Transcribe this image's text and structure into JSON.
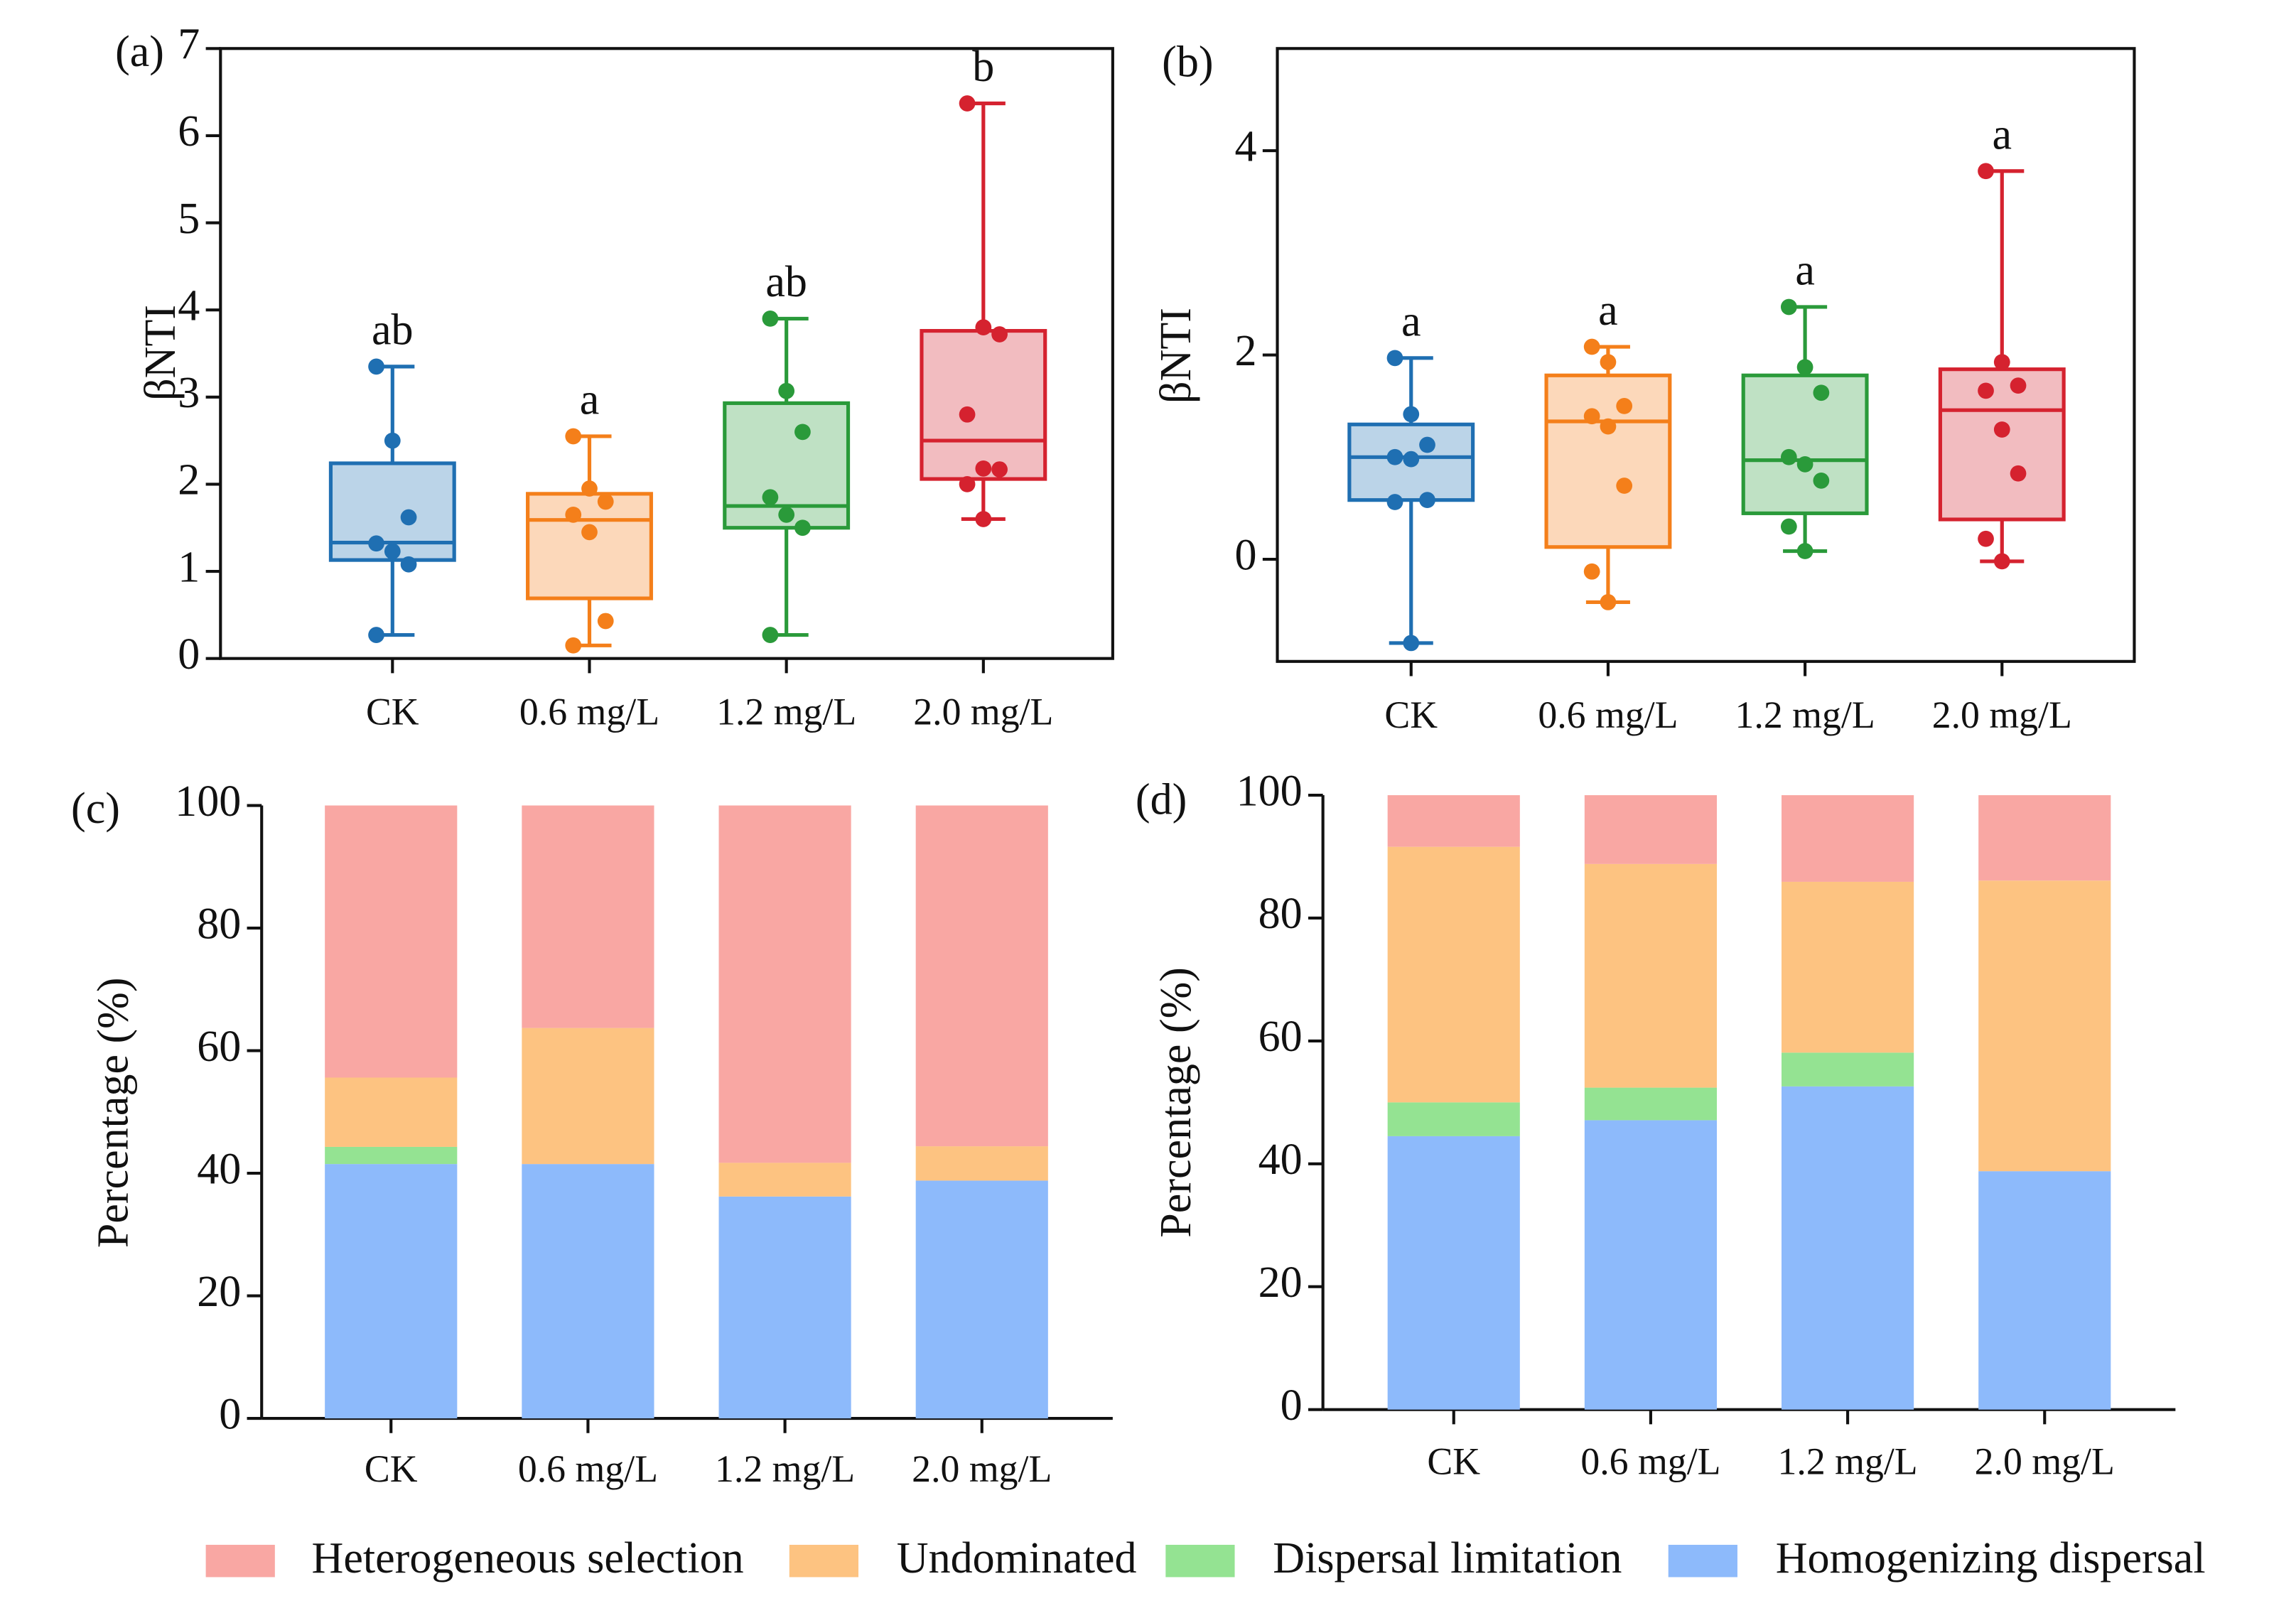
{
  "chart_data": [
    {
      "type": "box",
      "label": "(a)",
      "ylabel": "βNTI",
      "categories": [
        "CK",
        "0.6 mg/L",
        "1.2 mg/L",
        "2.0 mg/L"
      ],
      "colors": [
        "#1f6fb2",
        "#f47f1a",
        "#2a9a3a",
        "#d5222f"
      ],
      "boxes": [
        {
          "min": 0.27,
          "q1": 1.13,
          "median": 1.33,
          "q3": 2.24,
          "max": 3.35,
          "points": [
            3.35,
            2.5,
            1.62,
            1.32,
            1.23,
            1.08,
            0.27
          ],
          "letter": "ab"
        },
        {
          "min": 0.15,
          "q1": 0.69,
          "median": 1.59,
          "q3": 1.89,
          "max": 2.55,
          "points": [
            2.55,
            1.95,
            1.8,
            1.65,
            1.45,
            0.43,
            0.15
          ],
          "letter": "a"
        },
        {
          "min": 0.27,
          "q1": 1.5,
          "median": 1.75,
          "q3": 2.93,
          "max": 3.9,
          "points": [
            3.9,
            3.07,
            2.6,
            1.85,
            1.65,
            1.5,
            0.27
          ],
          "letter": "ab"
        },
        {
          "min": 1.6,
          "q1": 2.06,
          "median": 2.5,
          "q3": 3.76,
          "max": 6.37,
          "points": [
            6.37,
            3.8,
            3.72,
            2.8,
            2.18,
            2.17,
            2.0,
            1.6
          ],
          "letter": "b"
        }
      ],
      "ylim": [
        0,
        7
      ],
      "yticks": [
        0,
        1,
        2,
        3,
        4,
        5,
        6,
        7
      ]
    },
    {
      "type": "box",
      "label": "(b)",
      "ylabel": "βNTI",
      "categories": [
        "CK",
        "0.6 mg/L",
        "1.2 mg/L",
        "2.0 mg/L"
      ],
      "colors": [
        "#1f6fb2",
        "#f47f1a",
        "#2a9a3a",
        "#d5222f"
      ],
      "boxes": [
        {
          "min": -0.82,
          "q1": 0.58,
          "median": 1.0,
          "q3": 1.32,
          "max": 1.97,
          "points": [
            1.97,
            1.42,
            1.12,
            1.0,
            0.98,
            0.58,
            0.56,
            -0.82
          ],
          "letter": "a"
        },
        {
          "min": -0.42,
          "q1": 0.12,
          "median": 1.35,
          "q3": 1.8,
          "max": 2.08,
          "points": [
            2.08,
            1.93,
            1.5,
            1.4,
            1.3,
            0.72,
            -0.12,
            -0.42
          ],
          "letter": "a"
        },
        {
          "min": 0.08,
          "q1": 0.45,
          "median": 0.97,
          "q3": 1.8,
          "max": 2.47,
          "points": [
            2.47,
            1.88,
            1.63,
            1.0,
            0.93,
            0.77,
            0.32,
            0.08
          ],
          "letter": "a"
        },
        {
          "min": -0.02,
          "q1": 0.39,
          "median": 1.46,
          "q3": 1.86,
          "max": 3.8,
          "points": [
            3.8,
            1.93,
            1.7,
            1.65,
            1.27,
            0.84,
            0.2,
            -0.02
          ],
          "letter": "a"
        }
      ],
      "ylim": [
        -1,
        5
      ],
      "yticks": [
        0,
        2,
        4
      ]
    },
    {
      "type": "stacked-bar",
      "label": "(c)",
      "ylabel": "Percentage (%)",
      "categories": [
        "CK",
        "0.6 mg/L",
        "1.2 mg/L",
        "2.0 mg/L"
      ],
      "series": [
        {
          "name": "Homogenizing dispersal",
          "color": "#8dbafb",
          "values": [
            41.5,
            41.5,
            36.2,
            38.8
          ]
        },
        {
          "name": "Dispersal limitation",
          "color": "#94e392",
          "values": [
            2.8,
            0,
            0,
            0
          ]
        },
        {
          "name": "Undominated",
          "color": "#fdc381",
          "values": [
            11.3,
            22.2,
            5.5,
            5.6
          ]
        },
        {
          "name": "Heterogeneous selection",
          "color": "#f9a7a3",
          "values": [
            44.4,
            36.3,
            58.3,
            55.6
          ]
        }
      ],
      "ylim": [
        0,
        100
      ],
      "yticks": [
        0,
        20,
        40,
        60,
        80,
        100
      ]
    },
    {
      "type": "stacked-bar",
      "label": "(d)",
      "ylabel": "Percentage (%)",
      "categories": [
        "CK",
        "0.6 mg/L",
        "1.2 mg/L",
        "2.0 mg/L"
      ],
      "series": [
        {
          "color": "#8dbafb",
          "values": [
            44.5,
            47.1,
            52.6,
            38.8
          ]
        },
        {
          "color": "#94e392",
          "values": [
            5.5,
            5.3,
            5.5,
            0
          ]
        },
        {
          "color": "#fdc381",
          "values": [
            41.6,
            36.4,
            27.8,
            47.3
          ]
        },
        {
          "color": "#f9a7a3",
          "values": [
            8.4,
            11.2,
            14.1,
            13.9
          ]
        }
      ],
      "ylim": [
        0,
        100
      ],
      "yticks": [
        0,
        20,
        40,
        60,
        80,
        100
      ]
    }
  ]
}
